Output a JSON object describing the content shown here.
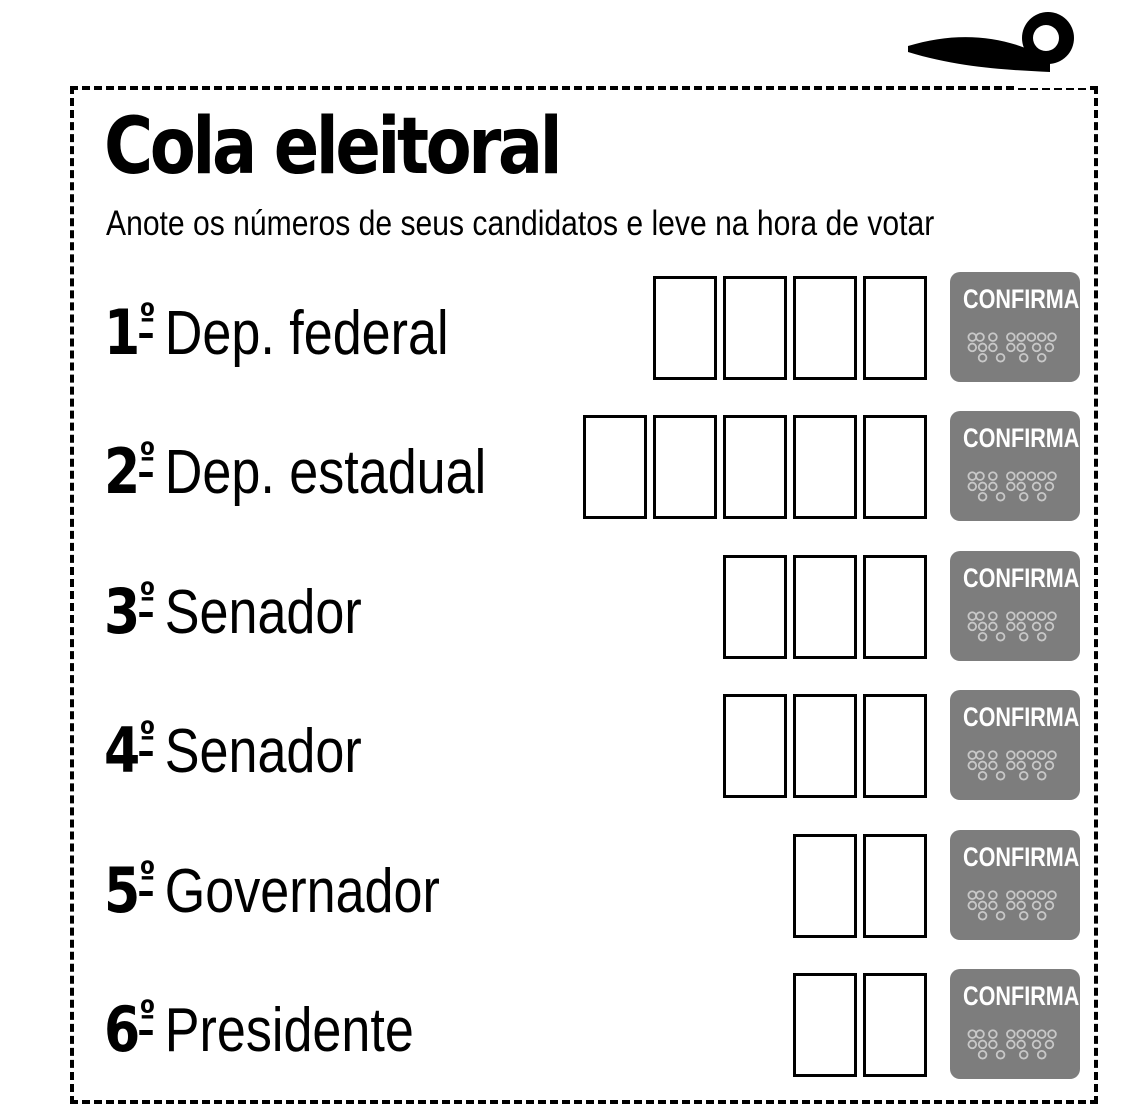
{
  "title": "Cola eleitoral",
  "subtitle": "Anote os números de seus candidatos e leve na hora de votar",
  "confirm_label": "CONFIRMA",
  "ordinal_mark": "º",
  "button_color": "#7d7d7d",
  "rows": [
    {
      "ordinal": "1",
      "office": "Dep. federal",
      "digits": 4
    },
    {
      "ordinal": "2",
      "office": "Dep. estadual",
      "digits": 5
    },
    {
      "ordinal": "3",
      "office": "Senador",
      "digits": 3
    },
    {
      "ordinal": "4",
      "office": "Senador",
      "digits": 3
    },
    {
      "ordinal": "5",
      "office": "Governador",
      "digits": 2
    },
    {
      "ordinal": "6",
      "office": "Presidente",
      "digits": 2
    }
  ],
  "icons": {
    "cut_marker": "scissors-icon",
    "tactile": "braille-icon"
  }
}
